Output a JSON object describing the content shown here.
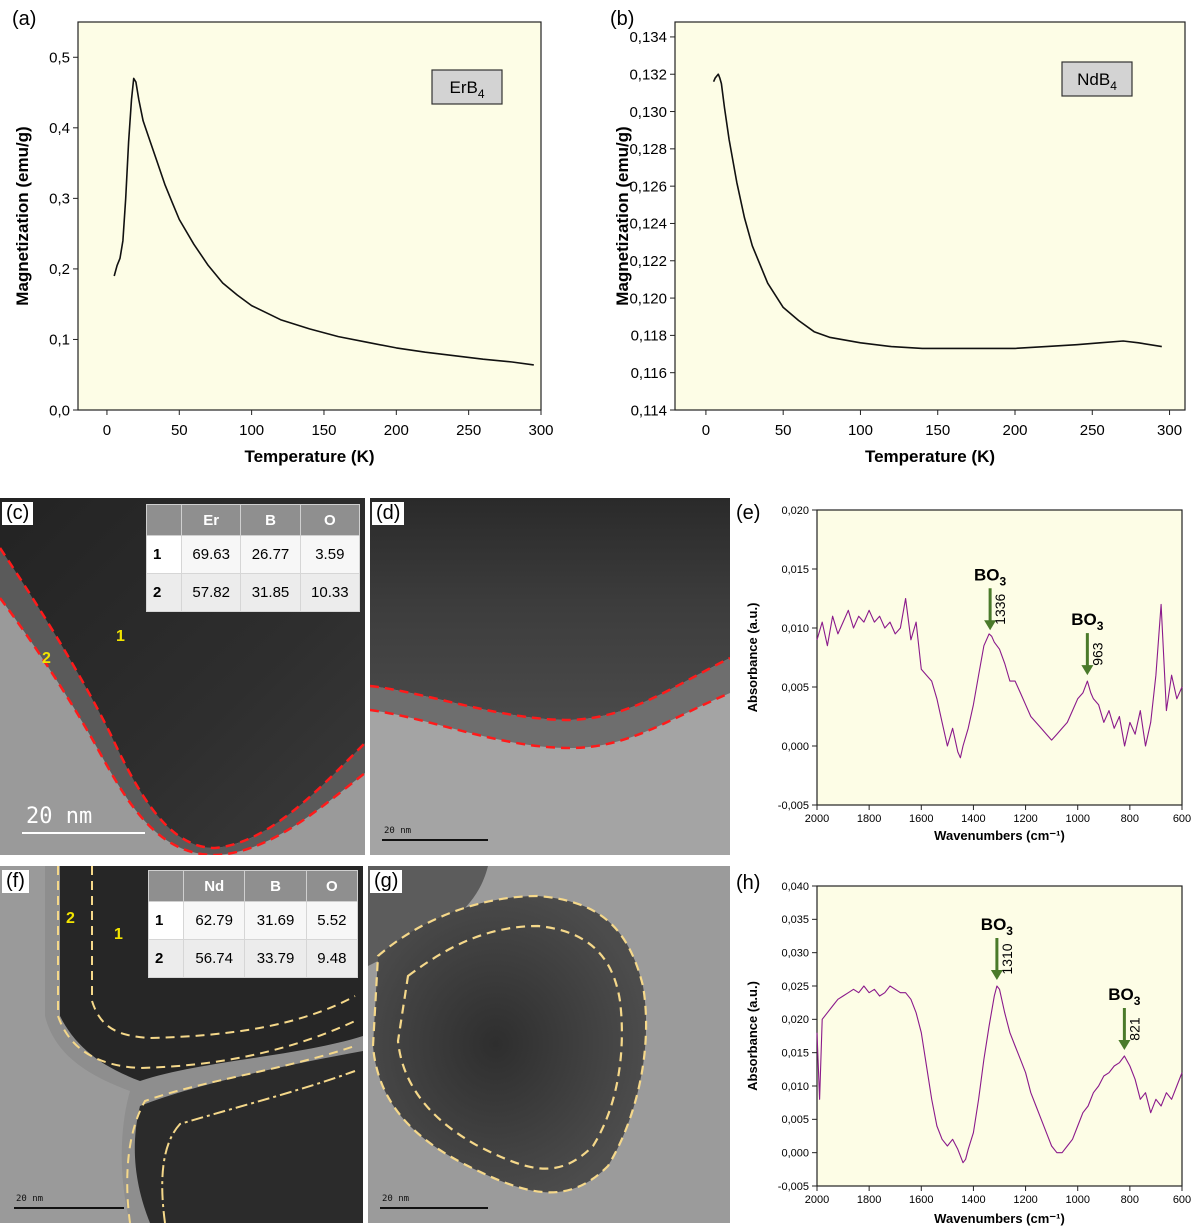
{
  "colors": {
    "plot_bg": "#fdfde6",
    "mag_line": "#111111",
    "ftir_line": "#8b1a8b",
    "arrow": "#4a7a2a",
    "interface_c": "#ff1a1a",
    "interface_f": "#f5d88a",
    "region_label": "#f2e400"
  },
  "chart_data": [
    {
      "panel": "(a)",
      "type": "line",
      "legend_label": "ErB",
      "legend_sub": "4",
      "xlabel": "Temperature (K)",
      "ylabel": "Magnetization (emu/g)",
      "xlim": [
        -20,
        300
      ],
      "ylim": [
        0,
        0.55
      ],
      "xticks": [
        "0",
        "50",
        "100",
        "150",
        "200",
        "250",
        "300"
      ],
      "yticks": [
        "0,0",
        "0,1",
        "0,2",
        "0,3",
        "0,4",
        "0,5"
      ],
      "x": [
        5,
        7,
        9,
        11,
        13,
        15,
        17,
        18.5,
        20,
        22,
        25,
        30,
        35,
        40,
        45,
        50,
        60,
        70,
        80,
        90,
        100,
        120,
        140,
        160,
        180,
        200,
        220,
        240,
        260,
        280,
        295
      ],
      "y": [
        0.19,
        0.205,
        0.215,
        0.24,
        0.3,
        0.38,
        0.44,
        0.47,
        0.465,
        0.44,
        0.41,
        0.38,
        0.35,
        0.32,
        0.295,
        0.27,
        0.235,
        0.205,
        0.18,
        0.163,
        0.148,
        0.128,
        0.115,
        0.104,
        0.096,
        0.088,
        0.082,
        0.077,
        0.072,
        0.068,
        0.064
      ]
    },
    {
      "panel": "(b)",
      "type": "line",
      "legend_label": "NdB",
      "legend_sub": "4",
      "xlabel": "Temperature (K)",
      "ylabel": "Magnetization (emu/g)",
      "xlim": [
        -20,
        310
      ],
      "ylim": [
        0.114,
        0.1348
      ],
      "xticks": [
        "0",
        "50",
        "100",
        "150",
        "200",
        "250",
        "300"
      ],
      "yticks": [
        "0,114",
        "0,116",
        "0,118",
        "0,120",
        "0,122",
        "0,124",
        "0,126",
        "0,128",
        "0,130",
        "0,132",
        "0,134"
      ],
      "x": [
        5,
        6,
        7,
        8,
        9,
        10,
        12,
        15,
        20,
        25,
        30,
        40,
        50,
        60,
        70,
        80,
        100,
        120,
        140,
        160,
        180,
        200,
        220,
        240,
        255,
        270,
        280,
        295
      ],
      "y": [
        0.1316,
        0.1318,
        0.1319,
        0.132,
        0.1318,
        0.1315,
        0.1302,
        0.1285,
        0.1262,
        0.1243,
        0.1228,
        0.1208,
        0.1195,
        0.1188,
        0.1182,
        0.1179,
        0.1176,
        0.1174,
        0.1173,
        0.1173,
        0.1173,
        0.1173,
        0.1174,
        0.1175,
        0.1176,
        0.1177,
        0.1176,
        0.1174
      ]
    },
    {
      "panel": "(e)",
      "type": "line",
      "xlabel": "Wavenumbers (cm⁻¹)",
      "ylabel": "Absorbance (a.u.)",
      "xlim": [
        2000,
        600
      ],
      "ylim": [
        -0.005,
        0.02
      ],
      "xticks": [
        "2000",
        "1800",
        "1600",
        "1400",
        "1200",
        "1000",
        "800",
        "600"
      ],
      "yticks": [
        "-0,005",
        "0,000",
        "0,005",
        "0,010",
        "0,015",
        "0,020"
      ],
      "x": [
        2000,
        1980,
        1960,
        1940,
        1920,
        1900,
        1880,
        1860,
        1840,
        1820,
        1800,
        1780,
        1760,
        1740,
        1720,
        1700,
        1680,
        1660,
        1640,
        1620,
        1600,
        1580,
        1560,
        1540,
        1520,
        1500,
        1480,
        1460,
        1450,
        1440,
        1420,
        1400,
        1380,
        1360,
        1340,
        1330,
        1320,
        1300,
        1280,
        1260,
        1240,
        1220,
        1200,
        1180,
        1160,
        1140,
        1120,
        1100,
        1080,
        1060,
        1040,
        1020,
        1000,
        980,
        963,
        950,
        940,
        920,
        900,
        880,
        860,
        840,
        820,
        800,
        780,
        760,
        740,
        720,
        700,
        680,
        660,
        640,
        620,
        600
      ],
      "y": [
        0.009,
        0.0105,
        0.0085,
        0.011,
        0.0095,
        0.0105,
        0.0115,
        0.01,
        0.011,
        0.0105,
        0.0115,
        0.0105,
        0.011,
        0.01,
        0.0105,
        0.0095,
        0.01,
        0.0125,
        0.009,
        0.0105,
        0.0065,
        0.006,
        0.0055,
        0.004,
        0.002,
        0.0,
        0.0015,
        -0.0005,
        -0.001,
        0.0,
        0.0015,
        0.0035,
        0.006,
        0.0085,
        0.0095,
        0.0093,
        0.0088,
        0.0082,
        0.007,
        0.0055,
        0.0055,
        0.0045,
        0.0035,
        0.0025,
        0.002,
        0.0015,
        0.001,
        0.0005,
        0.001,
        0.0015,
        0.002,
        0.003,
        0.004,
        0.0045,
        0.0055,
        0.0045,
        0.004,
        0.0035,
        0.002,
        0.003,
        0.0015,
        0.0025,
        0.0,
        0.002,
        0.001,
        0.003,
        0.0,
        0.002,
        0.006,
        0.012,
        0.003,
        0.006,
        0.004,
        0.005
      ],
      "annotations": [
        {
          "label": "BO",
          "sub": "3",
          "value": "1336",
          "x": 1336,
          "y": 0.0093
        },
        {
          "label": "BO",
          "sub": "3",
          "value": "963",
          "x": 963,
          "y": 0.0055
        }
      ]
    },
    {
      "panel": "(h)",
      "type": "line",
      "xlabel": "Wavenumbers (cm⁻¹)",
      "ylabel": "Absorbance (a.u.)",
      "xlim": [
        2000,
        600
      ],
      "ylim": [
        -0.005,
        0.04
      ],
      "xticks": [
        "2000",
        "1800",
        "1600",
        "1400",
        "1200",
        "1000",
        "800",
        "600"
      ],
      "yticks": [
        "-0,005",
        "0,000",
        "0,005",
        "0,010",
        "0,015",
        "0,020",
        "0,025",
        "0,030",
        "0,035",
        "0,040"
      ],
      "x": [
        2000,
        1990,
        1980,
        1960,
        1940,
        1920,
        1900,
        1880,
        1860,
        1840,
        1820,
        1800,
        1780,
        1760,
        1740,
        1720,
        1700,
        1680,
        1660,
        1640,
        1620,
        1600,
        1580,
        1560,
        1540,
        1520,
        1500,
        1480,
        1460,
        1440,
        1430,
        1420,
        1400,
        1380,
        1360,
        1340,
        1320,
        1310,
        1300,
        1280,
        1260,
        1240,
        1220,
        1200,
        1180,
        1160,
        1140,
        1120,
        1100,
        1080,
        1060,
        1040,
        1020,
        1000,
        980,
        960,
        940,
        920,
        900,
        880,
        860,
        840,
        821,
        800,
        780,
        760,
        740,
        720,
        700,
        680,
        660,
        640,
        620,
        600
      ],
      "y": [
        0.018,
        0.008,
        0.02,
        0.021,
        0.022,
        0.023,
        0.0235,
        0.024,
        0.0245,
        0.024,
        0.025,
        0.024,
        0.0245,
        0.0235,
        0.024,
        0.025,
        0.0245,
        0.024,
        0.024,
        0.023,
        0.021,
        0.018,
        0.013,
        0.008,
        0.004,
        0.002,
        0.001,
        0.002,
        0.0005,
        -0.0015,
        -0.001,
        0.0005,
        0.003,
        0.008,
        0.014,
        0.019,
        0.0235,
        0.025,
        0.0245,
        0.021,
        0.018,
        0.016,
        0.014,
        0.012,
        0.009,
        0.007,
        0.005,
        0.003,
        0.001,
        0.0,
        0.0,
        0.001,
        0.002,
        0.004,
        0.006,
        0.007,
        0.009,
        0.01,
        0.0115,
        0.012,
        0.013,
        0.0135,
        0.0145,
        0.013,
        0.011,
        0.008,
        0.009,
        0.006,
        0.008,
        0.007,
        0.009,
        0.008,
        0.01,
        0.012
      ],
      "annotations": [
        {
          "label": "BO",
          "sub": "3",
          "value": "1310",
          "x": 1310,
          "y": 0.025
        },
        {
          "label": "BO",
          "sub": "3",
          "value": "821",
          "x": 821,
          "y": 0.0145
        }
      ]
    }
  ],
  "tem": {
    "c": {
      "label": "(c)",
      "table": {
        "headers": [
          "",
          "Er",
          "B",
          "O"
        ],
        "rows": [
          [
            "1",
            "69.63",
            "26.77",
            "3.59"
          ],
          [
            "2",
            "57.82",
            "31.85",
            "10.33"
          ]
        ]
      },
      "regions": [
        "2",
        "1"
      ],
      "scale": "20  nm"
    },
    "d": {
      "label": "(d)",
      "scale": "20 nm"
    },
    "f": {
      "label": "(f)",
      "table": {
        "headers": [
          "",
          "Nd",
          "B",
          "O"
        ],
        "rows": [
          [
            "1",
            "62.79",
            "31.69",
            "5.52"
          ],
          [
            "2",
            "56.74",
            "33.79",
            "9.48"
          ]
        ]
      },
      "regions": [
        "2",
        "1"
      ],
      "scale": "20 nm"
    },
    "g": {
      "label": "(g)",
      "scale": "20 nm"
    }
  }
}
